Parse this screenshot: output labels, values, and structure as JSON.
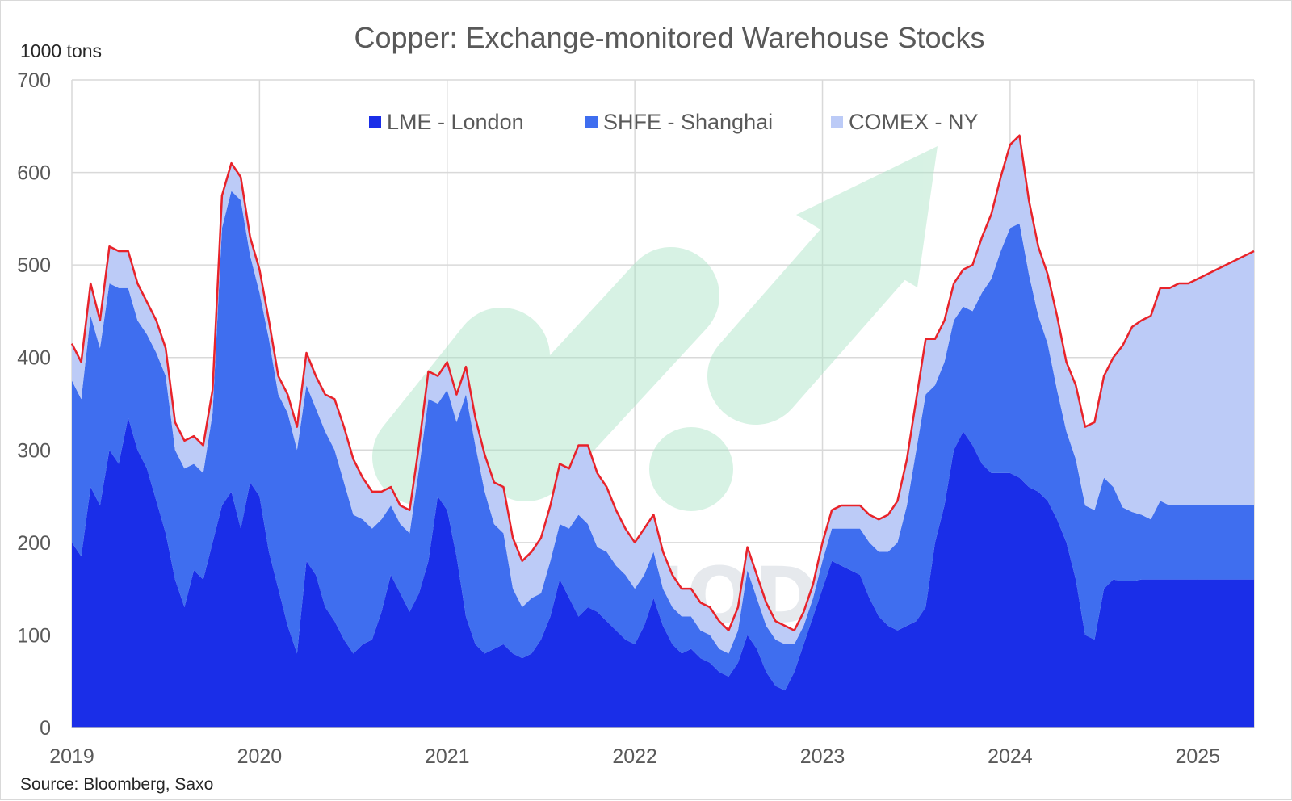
{
  "chart_data": {
    "type": "area",
    "stacked": true,
    "title": "Copper: Exchange-monitored Warehouse Stocks",
    "unit_label": "1000 tons",
    "source": "Source: Bloomberg, Saxo",
    "watermark": "VN COMMODITIES",
    "ylim": [
      0,
      700
    ],
    "yticks": [
      "0",
      "100",
      "200",
      "300",
      "400",
      "500",
      "600",
      "700"
    ],
    "xlim": [
      2019.0,
      2025.3
    ],
    "xticks": [
      "2019",
      "2020",
      "2021",
      "2022",
      "2023",
      "2024",
      "2025"
    ],
    "grid": true,
    "legend_position": "top-center",
    "total_line_color": "#e8232a",
    "x": [
      2019.0,
      2019.05,
      2019.1,
      2019.15,
      2019.2,
      2019.25,
      2019.3,
      2019.35,
      2019.4,
      2019.45,
      2019.5,
      2019.55,
      2019.6,
      2019.65,
      2019.7,
      2019.75,
      2019.8,
      2019.85,
      2019.9,
      2019.95,
      2020.0,
      2020.05,
      2020.1,
      2020.15,
      2020.2,
      2020.25,
      2020.3,
      2020.35,
      2020.4,
      2020.45,
      2020.5,
      2020.55,
      2020.6,
      2020.65,
      2020.7,
      2020.75,
      2020.8,
      2020.85,
      2020.9,
      2020.95,
      2021.0,
      2021.05,
      2021.1,
      2021.15,
      2021.2,
      2021.25,
      2021.3,
      2021.35,
      2021.4,
      2021.45,
      2021.5,
      2021.55,
      2021.6,
      2021.65,
      2021.7,
      2021.75,
      2021.8,
      2021.85,
      2021.9,
      2021.95,
      2022.0,
      2022.05,
      2022.1,
      2022.15,
      2022.2,
      2022.25,
      2022.3,
      2022.35,
      2022.4,
      2022.45,
      2022.5,
      2022.55,
      2022.6,
      2022.65,
      2022.7,
      2022.75,
      2022.8,
      2022.85,
      2022.9,
      2022.95,
      2023.0,
      2023.05,
      2023.1,
      2023.15,
      2023.2,
      2023.25,
      2023.3,
      2023.35,
      2023.4,
      2023.45,
      2023.5,
      2023.55,
      2023.6,
      2023.65,
      2023.7,
      2023.75,
      2023.8,
      2023.85,
      2023.9,
      2023.95,
      2024.0,
      2024.05,
      2024.1,
      2024.15,
      2024.2,
      2024.25,
      2024.3,
      2024.35,
      2024.4,
      2024.45,
      2024.5,
      2024.55,
      2024.6,
      2024.65,
      2024.7,
      2024.75,
      2024.8,
      2024.85,
      2024.9,
      2024.95,
      2025.0,
      2025.05,
      2025.1,
      2025.15,
      2025.2,
      2025.25,
      2025.3
    ],
    "series": [
      {
        "name": "LME - London",
        "color": "#1a2ee8",
        "values": [
          200,
          185,
          260,
          240,
          300,
          285,
          335,
          300,
          280,
          245,
          210,
          160,
          130,
          170,
          160,
          200,
          240,
          255,
          215,
          265,
          250,
          190,
          150,
          110,
          80,
          180,
          165,
          130,
          115,
          95,
          80,
          90,
          95,
          125,
          165,
          145,
          125,
          145,
          180,
          250,
          235,
          185,
          120,
          90,
          80,
          85,
          90,
          80,
          75,
          80,
          95,
          120,
          160,
          140,
          120,
          130,
          125,
          115,
          105,
          95,
          90,
          110,
          140,
          110,
          90,
          80,
          85,
          75,
          70,
          60,
          55,
          70,
          100,
          85,
          60,
          45,
          40,
          60,
          90,
          120,
          150,
          180,
          175,
          170,
          165,
          140,
          120,
          110,
          105,
          110,
          115,
          130,
          200,
          240,
          300,
          320,
          305,
          285,
          275,
          275,
          275,
          270,
          260,
          255,
          245,
          225,
          200,
          160,
          100,
          95,
          150,
          160,
          158,
          158,
          160,
          160,
          160,
          160,
          160,
          160,
          160,
          160,
          160,
          160,
          160,
          160,
          160
        ]
      },
      {
        "name": "SHFE - Shanghai",
        "color": "#3f6eef",
        "values": [
          175,
          170,
          185,
          170,
          180,
          190,
          140,
          140,
          145,
          160,
          170,
          140,
          150,
          115,
          115,
          140,
          300,
          325,
          355,
          245,
          220,
          230,
          210,
          230,
          220,
          190,
          180,
          190,
          185,
          170,
          150,
          135,
          120,
          100,
          75,
          75,
          85,
          135,
          175,
          100,
          130,
          145,
          240,
          215,
          175,
          135,
          120,
          70,
          55,
          60,
          50,
          60,
          60,
          75,
          110,
          90,
          70,
          75,
          70,
          70,
          60,
          55,
          50,
          40,
          40,
          40,
          35,
          30,
          30,
          25,
          25,
          35,
          70,
          55,
          50,
          50,
          50,
          30,
          20,
          20,
          30,
          35,
          40,
          45,
          50,
          60,
          70,
          80,
          95,
          130,
          185,
          230,
          170,
          155,
          140,
          135,
          145,
          185,
          210,
          240,
          265,
          275,
          230,
          190,
          170,
          140,
          120,
          130,
          140,
          140,
          120,
          100,
          80,
          75,
          70,
          65,
          85,
          80,
          80,
          80,
          80,
          80,
          80,
          80,
          80,
          80,
          80
        ]
      },
      {
        "name": "COMEX - NY",
        "color": "#bccbf7",
        "values": [
          40,
          40,
          35,
          30,
          40,
          40,
          40,
          40,
          35,
          35,
          30,
          30,
          30,
          30,
          30,
          25,
          35,
          30,
          25,
          20,
          25,
          20,
          20,
          20,
          25,
          35,
          35,
          40,
          55,
          60,
          60,
          45,
          40,
          30,
          20,
          20,
          25,
          25,
          30,
          30,
          30,
          30,
          30,
          30,
          40,
          45,
          50,
          55,
          50,
          50,
          60,
          60,
          65,
          65,
          75,
          85,
          80,
          70,
          60,
          50,
          50,
          50,
          40,
          40,
          35,
          30,
          30,
          30,
          30,
          30,
          25,
          25,
          25,
          25,
          25,
          20,
          20,
          15,
          15,
          15,
          20,
          20,
          25,
          25,
          25,
          30,
          35,
          40,
          45,
          50,
          55,
          60,
          50,
          45,
          40,
          40,
          50,
          60,
          70,
          80,
          90,
          95,
          80,
          75,
          75,
          80,
          75,
          80,
          85,
          95,
          110,
          140,
          175,
          200,
          210,
          220,
          230,
          235,
          240,
          240,
          245,
          250,
          255,
          260,
          265,
          270,
          275
        ]
      }
    ]
  }
}
